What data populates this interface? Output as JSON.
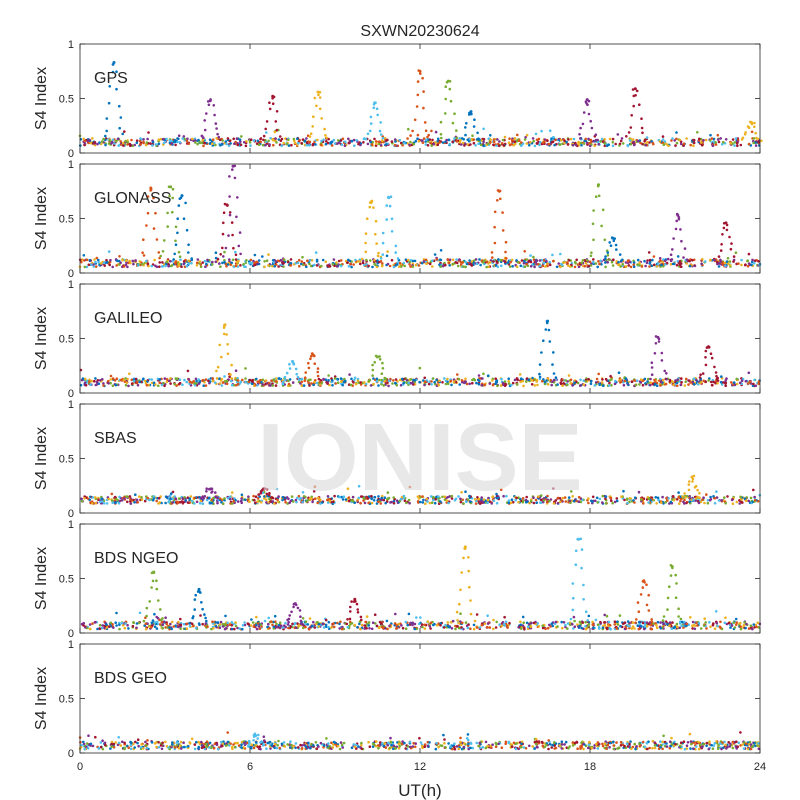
{
  "figure": {
    "title": "SXWN20230624",
    "xlabel": "UT(h)",
    "watermark": "IONISE"
  },
  "chart_data": {
    "type": "scatter",
    "title": "SXWN20230624",
    "xlabel": "UT(h)",
    "ylabel": "S4 Index",
    "xlim": [
      0,
      24
    ],
    "ylim": [
      0,
      1
    ],
    "x_ticks": [
      "0",
      "6",
      "12",
      "18",
      "24"
    ],
    "y_ticks": [
      "0",
      "0.5",
      "1"
    ],
    "grid": false,
    "series_colors": [
      "#0072BD",
      "#D95319",
      "#EDB120",
      "#7E2F8E",
      "#77AC30",
      "#4DBEEE",
      "#A2142F"
    ],
    "panels": [
      {
        "label": "GPS",
        "baseline": 0.1,
        "spikes": [
          {
            "x": 1.2,
            "y": 0.83
          },
          {
            "x": 4.6,
            "y": 0.48
          },
          {
            "x": 6.8,
            "y": 0.52
          },
          {
            "x": 8.4,
            "y": 0.56
          },
          {
            "x": 10.4,
            "y": 0.46
          },
          {
            "x": 12.0,
            "y": 0.75
          },
          {
            "x": 13.0,
            "y": 0.66
          },
          {
            "x": 13.8,
            "y": 0.38
          },
          {
            "x": 17.9,
            "y": 0.49
          },
          {
            "x": 19.6,
            "y": 0.59
          },
          {
            "x": 23.7,
            "y": 0.28
          }
        ]
      },
      {
        "label": "GLONASS",
        "baseline": 0.09,
        "spikes": [
          {
            "x": 2.5,
            "y": 0.78
          },
          {
            "x": 3.2,
            "y": 0.79
          },
          {
            "x": 3.6,
            "y": 0.71
          },
          {
            "x": 5.4,
            "y": 0.98
          },
          {
            "x": 5.2,
            "y": 0.62
          },
          {
            "x": 10.3,
            "y": 0.66
          },
          {
            "x": 10.9,
            "y": 0.69
          },
          {
            "x": 14.8,
            "y": 0.75
          },
          {
            "x": 18.3,
            "y": 0.81
          },
          {
            "x": 18.8,
            "y": 0.32
          },
          {
            "x": 21.1,
            "y": 0.53
          },
          {
            "x": 22.8,
            "y": 0.46
          }
        ]
      },
      {
        "label": "GALILEO",
        "baseline": 0.1,
        "spikes": [
          {
            "x": 5.1,
            "y": 0.62
          },
          {
            "x": 7.5,
            "y": 0.29
          },
          {
            "x": 8.2,
            "y": 0.36
          },
          {
            "x": 10.5,
            "y": 0.33
          },
          {
            "x": 16.5,
            "y": 0.66
          },
          {
            "x": 20.4,
            "y": 0.51
          },
          {
            "x": 22.2,
            "y": 0.42
          }
        ]
      },
      {
        "label": "SBAS",
        "baseline": 0.12,
        "spikes": [
          {
            "x": 4.6,
            "y": 0.22
          },
          {
            "x": 6.5,
            "y": 0.22
          },
          {
            "x": 21.6,
            "y": 0.33
          }
        ]
      },
      {
        "label": "BDS NGEO",
        "baseline": 0.07,
        "spikes": [
          {
            "x": 2.6,
            "y": 0.56
          },
          {
            "x": 4.2,
            "y": 0.4
          },
          {
            "x": 7.6,
            "y": 0.27
          },
          {
            "x": 9.7,
            "y": 0.31
          },
          {
            "x": 13.6,
            "y": 0.79
          },
          {
            "x": 17.6,
            "y": 0.86
          },
          {
            "x": 19.9,
            "y": 0.48
          },
          {
            "x": 20.9,
            "y": 0.61
          }
        ]
      },
      {
        "label": "BDS GEO",
        "baseline": 0.07,
        "spikes": [
          {
            "x": 6.2,
            "y": 0.16
          }
        ]
      }
    ]
  }
}
